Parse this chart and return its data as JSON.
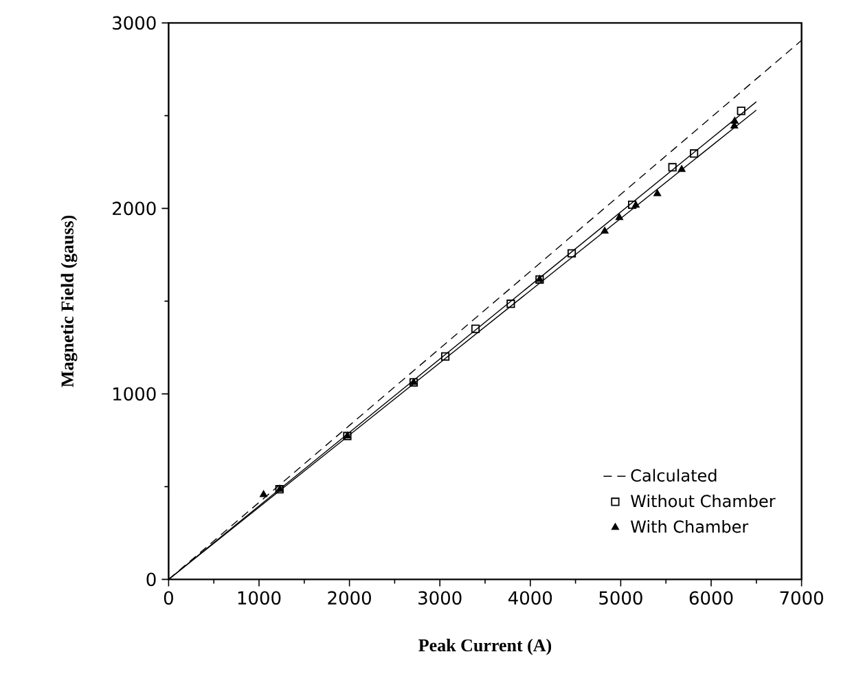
{
  "chart_data": {
    "type": "scatter",
    "xlabel": "Peak Current (A)",
    "ylabel": "Magnetic Field (gauss)",
    "xlim": [
      0,
      7000
    ],
    "ylim": [
      0,
      3000
    ],
    "xticks": [
      0,
      1000,
      2000,
      3000,
      4000,
      5000,
      6000,
      7000
    ],
    "yticks": [
      0,
      1000,
      2000,
      3000
    ],
    "legend": "bottom right",
    "grid": false,
    "series": [
      {
        "name": "Calculated",
        "type": "line",
        "marker": "none",
        "line_style": "dashed",
        "color": "#000000",
        "x": [
          0,
          7000
        ],
        "values": [
          0,
          2906
        ]
      },
      {
        "type": "line",
        "marker": "none",
        "line_style": "solid",
        "color": "#000000",
        "x": [
          0,
          6500
        ],
        "values": [
          0,
          2575
        ]
      },
      {
        "type": "line",
        "marker": "none",
        "line_style": "solid",
        "color": "#000000",
        "x": [
          0,
          6500
        ],
        "values": [
          0,
          2530
        ]
      },
      {
        "name": "Without Chamber",
        "marker": "square",
        "color": "#000000",
        "x": [
          1226,
          1976,
          2710,
          3060,
          3394,
          3784,
          4103,
          4458,
          5127,
          5572,
          5811,
          6332
        ],
        "values": [
          486,
          773,
          1062,
          1202,
          1351,
          1486,
          1617,
          1758,
          2020,
          2222,
          2296,
          2526
        ]
      },
      {
        "name": "With Chamber",
        "marker": "triangle",
        "color": "#000000",
        "x": [
          1050,
          1230,
          1976,
          2710,
          4103,
          4823,
          4985,
          5167,
          5405,
          5674,
          6256,
          6260
        ],
        "values": [
          457,
          486,
          773,
          1062,
          1617,
          1877,
          1951,
          2017,
          2079,
          2210,
          2444,
          2470
        ]
      }
    ]
  }
}
